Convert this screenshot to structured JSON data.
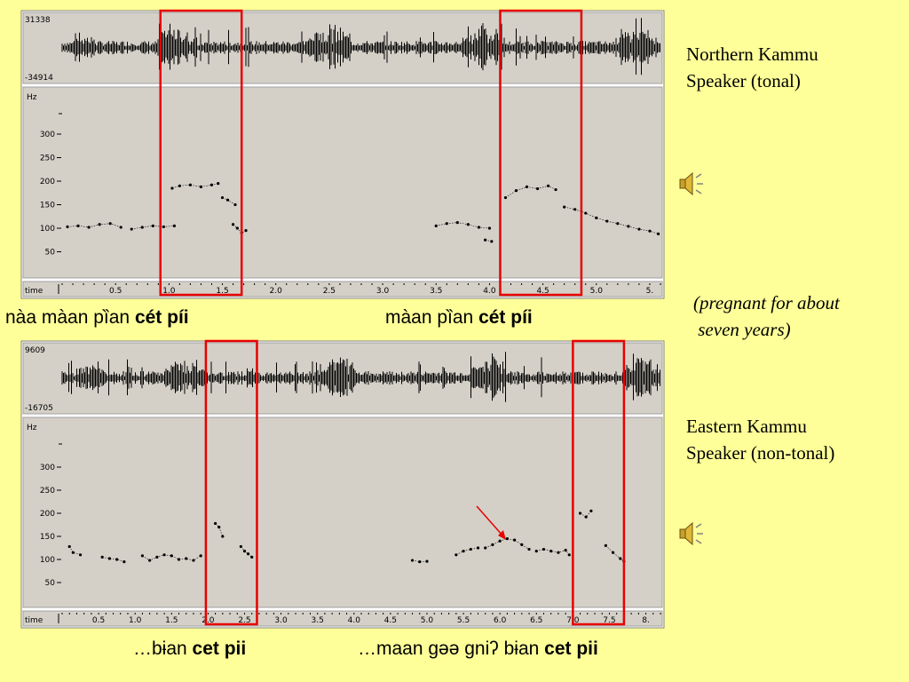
{
  "colors": {
    "background": "#ffff99",
    "panel": "#d4d0c8",
    "highlight": "#e80000",
    "arrow": "#e80000"
  },
  "icons": [
    "speaker-icon",
    "speaker-icon"
  ],
  "side_labels": {
    "northern_line1": "Northern Kammu",
    "northern_line2": "Speaker (tonal)",
    "note_line1": "(pregnant for about",
    "note_line2": " seven years)",
    "eastern_line1": "Eastern Kammu",
    "eastern_line2": "Speaker (non-tonal)"
  },
  "captions": {
    "n1_plain": "nàa màan pȉan ",
    "n1_bold": "cét píi",
    "n2_plain": "màan pȉan ",
    "n2_bold": "cét píi",
    "e1_plain": "…bɨan ",
    "e1_bold": "cet pii",
    "e2_plain": "…maan gəə gniʔ bɨan ",
    "e2_bold": "cet pii"
  },
  "chart_data": [
    {
      "type": "scatter",
      "title": "",
      "waveform_labels": {
        "top": "31338",
        "bottom": "-34914"
      },
      "ylabel": "Hz",
      "xlabel": "time",
      "ylim": [
        0,
        380
      ],
      "xlim": [
        0,
        5.6
      ],
      "yticks": [
        50,
        100,
        150,
        200,
        250,
        300
      ],
      "xticks": [
        "0.5",
        "1.0",
        "1.5",
        "2.0",
        "2.5",
        "3.0",
        "3.5",
        "4.0",
        "4.5",
        "5.0",
        "5."
      ],
      "xtick_values": [
        0.5,
        1.0,
        1.5,
        2.0,
        2.5,
        3.0,
        3.5,
        4.0,
        4.5,
        5.0,
        5.5
      ],
      "highlight_ranges": [
        [
          0.92,
          1.68
        ],
        [
          4.1,
          4.86
        ]
      ],
      "pitch_segments": [
        {
          "x": [
            0.05,
            0.15,
            0.25,
            0.35,
            0.45,
            0.55
          ],
          "y": [
            103,
            105,
            102,
            108,
            110,
            102
          ]
        },
        {
          "x": [
            0.65,
            0.75,
            0.85,
            0.95,
            1.05
          ],
          "y": [
            98,
            102,
            105,
            103,
            105
          ]
        },
        {
          "x": [
            1.03,
            1.1,
            1.2,
            1.3,
            1.4,
            1.46
          ],
          "y": [
            185,
            190,
            192,
            188,
            192,
            195
          ]
        },
        {
          "x": [
            1.5,
            1.55,
            1.62
          ],
          "y": [
            165,
            160,
            150
          ]
        },
        {
          "x": [
            1.6,
            1.64,
            1.68,
            1.72
          ],
          "y": [
            108,
            100,
            90,
            95
          ]
        },
        {
          "x": [
            3.5,
            3.6,
            3.7,
            3.8,
            3.9,
            4.0
          ],
          "y": [
            105,
            110,
            112,
            108,
            102,
            100
          ]
        },
        {
          "x": [
            3.96,
            4.02
          ],
          "y": [
            75,
            72
          ]
        },
        {
          "x": [
            4.15,
            4.25,
            4.35,
            4.45,
            4.55,
            4.62
          ],
          "y": [
            165,
            180,
            188,
            184,
            190,
            182
          ]
        },
        {
          "x": [
            4.7,
            4.8,
            4.9,
            5.0,
            5.1,
            5.2,
            5.3,
            5.4,
            5.5,
            5.58
          ],
          "y": [
            145,
            140,
            132,
            122,
            115,
            110,
            104,
            98,
            94,
            88
          ]
        }
      ]
    },
    {
      "type": "scatter",
      "title": "",
      "waveform_labels": {
        "top": "9609",
        "bottom": "-16705"
      },
      "ylabel": "Hz",
      "xlabel": "time",
      "ylim": [
        0,
        380
      ],
      "xlim": [
        0,
        8.2
      ],
      "yticks": [
        50,
        100,
        150,
        200,
        250,
        300
      ],
      "xticks": [
        "0.5",
        "1.0",
        "1.5",
        "2.0",
        "2.5",
        "3.0",
        "3.5",
        "4.0",
        "4.5",
        "5.0",
        "5.5",
        "6.0",
        "6.5",
        "7.0",
        "7.5",
        "8."
      ],
      "xtick_values": [
        0.5,
        1.0,
        1.5,
        2.0,
        2.5,
        3.0,
        3.5,
        4.0,
        4.5,
        5.0,
        5.5,
        6.0,
        6.5,
        7.0,
        7.5,
        8.0
      ],
      "highlight_ranges": [
        [
          1.97,
          2.67
        ],
        [
          7.0,
          7.7
        ]
      ],
      "pitch_segments": [
        {
          "x": [
            0.1,
            0.15,
            0.25
          ],
          "y": [
            128,
            115,
            110
          ]
        },
        {
          "x": [
            0.55,
            0.65,
            0.75,
            0.85
          ],
          "y": [
            105,
            102,
            100,
            95
          ]
        },
        {
          "x": [
            1.1,
            1.2,
            1.3,
            1.4,
            1.5,
            1.6,
            1.7,
            1.8,
            1.9
          ],
          "y": [
            108,
            98,
            105,
            110,
            108,
            100,
            102,
            98,
            108
          ]
        },
        {
          "x": [
            2.1,
            2.15,
            2.2
          ],
          "y": [
            178,
            170,
            150
          ]
        },
        {
          "x": [
            2.45,
            2.5,
            2.55,
            2.6
          ],
          "y": [
            128,
            118,
            112,
            105
          ]
        },
        {
          "x": [
            4.8,
            4.9,
            5.0
          ],
          "y": [
            98,
            95,
            96
          ]
        },
        {
          "x": [
            5.4,
            5.5,
            5.6,
            5.7
          ],
          "y": [
            110,
            118,
            122,
            125
          ]
        },
        {
          "x": [
            5.8,
            5.9,
            6.0,
            6.1,
            6.2,
            6.3,
            6.4
          ],
          "y": [
            125,
            132,
            140,
            145,
            142,
            132,
            122
          ]
        },
        {
          "x": [
            6.5,
            6.6,
            6.7,
            6.8,
            6.9,
            6.95
          ],
          "y": [
            118,
            122,
            118,
            115,
            120,
            110
          ]
        },
        {
          "x": [
            7.1,
            7.18,
            7.25
          ],
          "y": [
            200,
            192,
            205
          ]
        },
        {
          "x": [
            7.45,
            7.55,
            7.65,
            7.7
          ],
          "y": [
            130,
            115,
            102,
            96
          ]
        }
      ]
    }
  ]
}
